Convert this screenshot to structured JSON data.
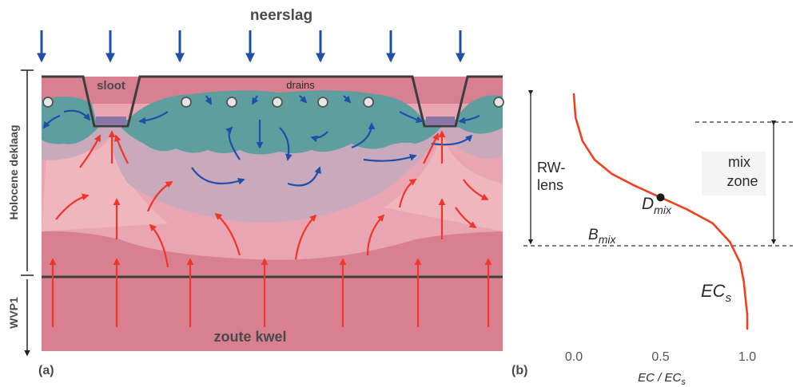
{
  "colors": {
    "fresh_lens": "#5e9e9e",
    "mix_zone": "#c4a7b8",
    "brackish": "#e8a6b0",
    "saline": "#d98090",
    "blue_arrow": "#1f4fa8",
    "red_arrow": "#f0352a",
    "ec_curve": "#f04020",
    "surface_line": "#3d3d3d"
  },
  "panel_a": {
    "title_top": "neerslag",
    "ditch_label": "sloot",
    "drains_label": "drains",
    "layer_top_label": "Holocene deklaag",
    "layer_bottom_label": "WVP1",
    "bottom_label": "zoute kwel",
    "panel_letter": "(a)"
  },
  "panel_b": {
    "panel_letter": "(b)",
    "lens_label_line1": "RW-",
    "lens_label_line2": "lens",
    "mix_label_line1": "mix",
    "mix_label_line2": "zone",
    "dmix_main": "D",
    "dmix_sub": "mix",
    "bmix_main": "B",
    "bmix_sub": "mix",
    "ecs_main": "EC",
    "ecs_sub": "s",
    "xaxis_label": "EC / EC",
    "xaxis_label_sub": "s",
    "xticks": [
      "0.0",
      "0.5",
      "1.0"
    ]
  },
  "chart_data": {
    "type": "line",
    "xlabel": "EC / ECs",
    "xticks": [
      0.0,
      0.5,
      1.0
    ],
    "xlim": [
      0.0,
      1.0
    ],
    "series": [
      {
        "x": [
          0.0,
          0.01,
          0.05,
          0.12,
          0.22,
          0.35,
          0.5,
          0.65,
          0.8,
          0.9,
          0.96,
          0.98,
          0.99,
          1.0,
          1.0
        ],
        "y": [
          0.0,
          0.1,
          0.2,
          0.28,
          0.34,
          0.39,
          0.44,
          0.49,
          0.55,
          0.63,
          0.72,
          0.8,
          0.87,
          0.94,
          1.0
        ]
      }
    ],
    "marked_point": {
      "x": 0.5,
      "label": "Dmix"
    }
  }
}
